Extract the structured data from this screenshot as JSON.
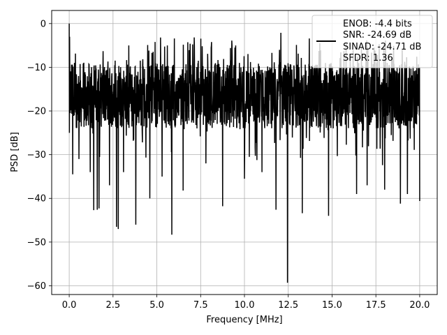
{
  "chart_data": {
    "type": "line",
    "title": "",
    "xlabel": "Frequency [MHz]",
    "ylabel": "PSD [dB]",
    "xlim": [
      -1.0,
      21.0
    ],
    "ylim": [
      -62.0,
      3.0
    ],
    "xticks": [
      0.0,
      2.5,
      5.0,
      7.5,
      10.0,
      12.5,
      15.0,
      17.5,
      20.0
    ],
    "xtick_labels": [
      "0.0",
      "2.5",
      "5.0",
      "7.5",
      "10.0",
      "12.5",
      "15.0",
      "17.5",
      "20.0"
    ],
    "yticks": [
      0,
      -10,
      -20,
      -30,
      -40,
      -50,
      -60
    ],
    "ytick_labels": [
      "0",
      "−10",
      "−20",
      "−30",
      "−40",
      "−50",
      "−60"
    ],
    "grid": true,
    "legend_position": "top-right",
    "series": [
      {
        "color": "#000000",
        "x_start": 0.0,
        "x_end": 20.0,
        "peak": {
          "x": 0.0,
          "y": 0.0
        },
        "typical_range": [
          -24,
          -9
        ],
        "noise_floor_approx": -18,
        "dips": [
          {
            "x": 0.2,
            "y": -34.5
          },
          {
            "x": 0.55,
            "y": -31
          },
          {
            "x": 1.2,
            "y": -34
          },
          {
            "x": 1.4,
            "y": -42.7
          },
          {
            "x": 1.6,
            "y": -42.6
          },
          {
            "x": 1.7,
            "y": -42.3
          },
          {
            "x": 2.3,
            "y": -37
          },
          {
            "x": 2.7,
            "y": -46.5
          },
          {
            "x": 2.8,
            "y": -47
          },
          {
            "x": 3.1,
            "y": -34
          },
          {
            "x": 3.8,
            "y": -46
          },
          {
            "x": 4.6,
            "y": -40
          },
          {
            "x": 5.3,
            "y": -35
          },
          {
            "x": 5.85,
            "y": -48.3
          },
          {
            "x": 6.5,
            "y": -38.2
          },
          {
            "x": 7.8,
            "y": -32
          },
          {
            "x": 8.75,
            "y": -41.8
          },
          {
            "x": 10.0,
            "y": -35.5
          },
          {
            "x": 11.0,
            "y": -34
          },
          {
            "x": 11.8,
            "y": -42.6
          },
          {
            "x": 12.45,
            "y": -59.3
          },
          {
            "x": 13.3,
            "y": -43.4
          },
          {
            "x": 14.8,
            "y": -44
          },
          {
            "x": 16.4,
            "y": -39
          },
          {
            "x": 17.0,
            "y": -37
          },
          {
            "x": 18.0,
            "y": -38
          },
          {
            "x": 18.9,
            "y": -41.2
          },
          {
            "x": 19.3,
            "y": -39
          },
          {
            "x": 20.0,
            "y": -40.6
          }
        ],
        "highs": [
          {
            "x": 0.0,
            "y": 0.0
          },
          {
            "x": 0.3,
            "y": -9
          },
          {
            "x": 3.4,
            "y": -5
          },
          {
            "x": 4.9,
            "y": -4.2
          },
          {
            "x": 5.6,
            "y": -5
          },
          {
            "x": 6.0,
            "y": -3.4
          },
          {
            "x": 6.9,
            "y": -4.6
          },
          {
            "x": 8.1,
            "y": -5.5
          },
          {
            "x": 9.5,
            "y": -5
          },
          {
            "x": 12.0,
            "y": -6
          },
          {
            "x": 13.7,
            "y": -3.4
          },
          {
            "x": 14.3,
            "y": -4.5
          },
          {
            "x": 15.8,
            "y": -4.5
          },
          {
            "x": 17.4,
            "y": -5.5
          },
          {
            "x": 19.0,
            "y": -6
          }
        ]
      }
    ],
    "legend": {
      "lines": [
        "ENOB: -4.4 bits",
        "SNR: -24.69 dB",
        "SINAD: -24.71 dB",
        "SFDR: 1.36"
      ],
      "color": "#000000"
    }
  }
}
